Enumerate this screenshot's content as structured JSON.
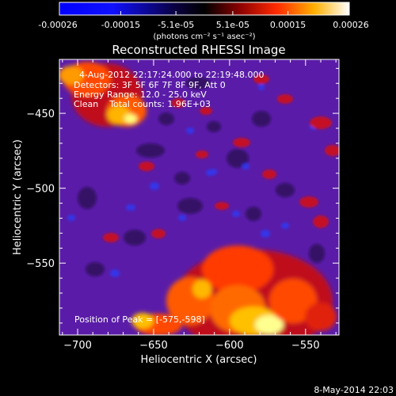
{
  "colorbar": {
    "tick_labels": [
      "-0.00026",
      "-0.00015",
      "-5.1e-05",
      "5.1e-05",
      "0.00015",
      "0.00026"
    ],
    "tick_values": [
      -0.00026,
      -0.00015,
      -5.1e-05,
      5.1e-05,
      0.00015,
      0.00026
    ],
    "range": [
      -0.00026,
      0.00026
    ],
    "units": "(photons cm⁻² s⁻¹ asec⁻²)"
  },
  "plot": {
    "title": "Reconstructed RHESSI Image",
    "info_lines": [
      "4-Aug-2012 22:17:24.000 to 22:19:48.000",
      "Detectors: 3F 5F 6F 7F 8F 9F, Att 0",
      "Energy Range: 12.0 - 25.0 keV",
      "Clean    Total counts: 1.96E+03"
    ],
    "peak_label": "Position of Peak = [-575,-598]",
    "x_axis": {
      "label": "Heliocentric X (arcsec)",
      "range": [
        -712,
        -528
      ],
      "ticks": [
        -700,
        -650,
        -600,
        -550
      ],
      "tick_labels": [
        "−700",
        "−650",
        "−600",
        "−550"
      ]
    },
    "y_axis": {
      "label": "Heliocentric Y (arcsec)",
      "range": [
        -598,
        -414
      ],
      "ticks": [
        -450,
        -500,
        -550
      ],
      "tick_labels": [
        "−450",
        "−500",
        "−550"
      ]
    }
  },
  "footer": {
    "timestamp": "8-May-2014 22:03"
  },
  "colors": {
    "background": "#000000",
    "axes": "#ffffff",
    "colormap": [
      "#0000ff",
      "#000000",
      "#ff0000",
      "#ffff00",
      "#ffffff"
    ]
  }
}
